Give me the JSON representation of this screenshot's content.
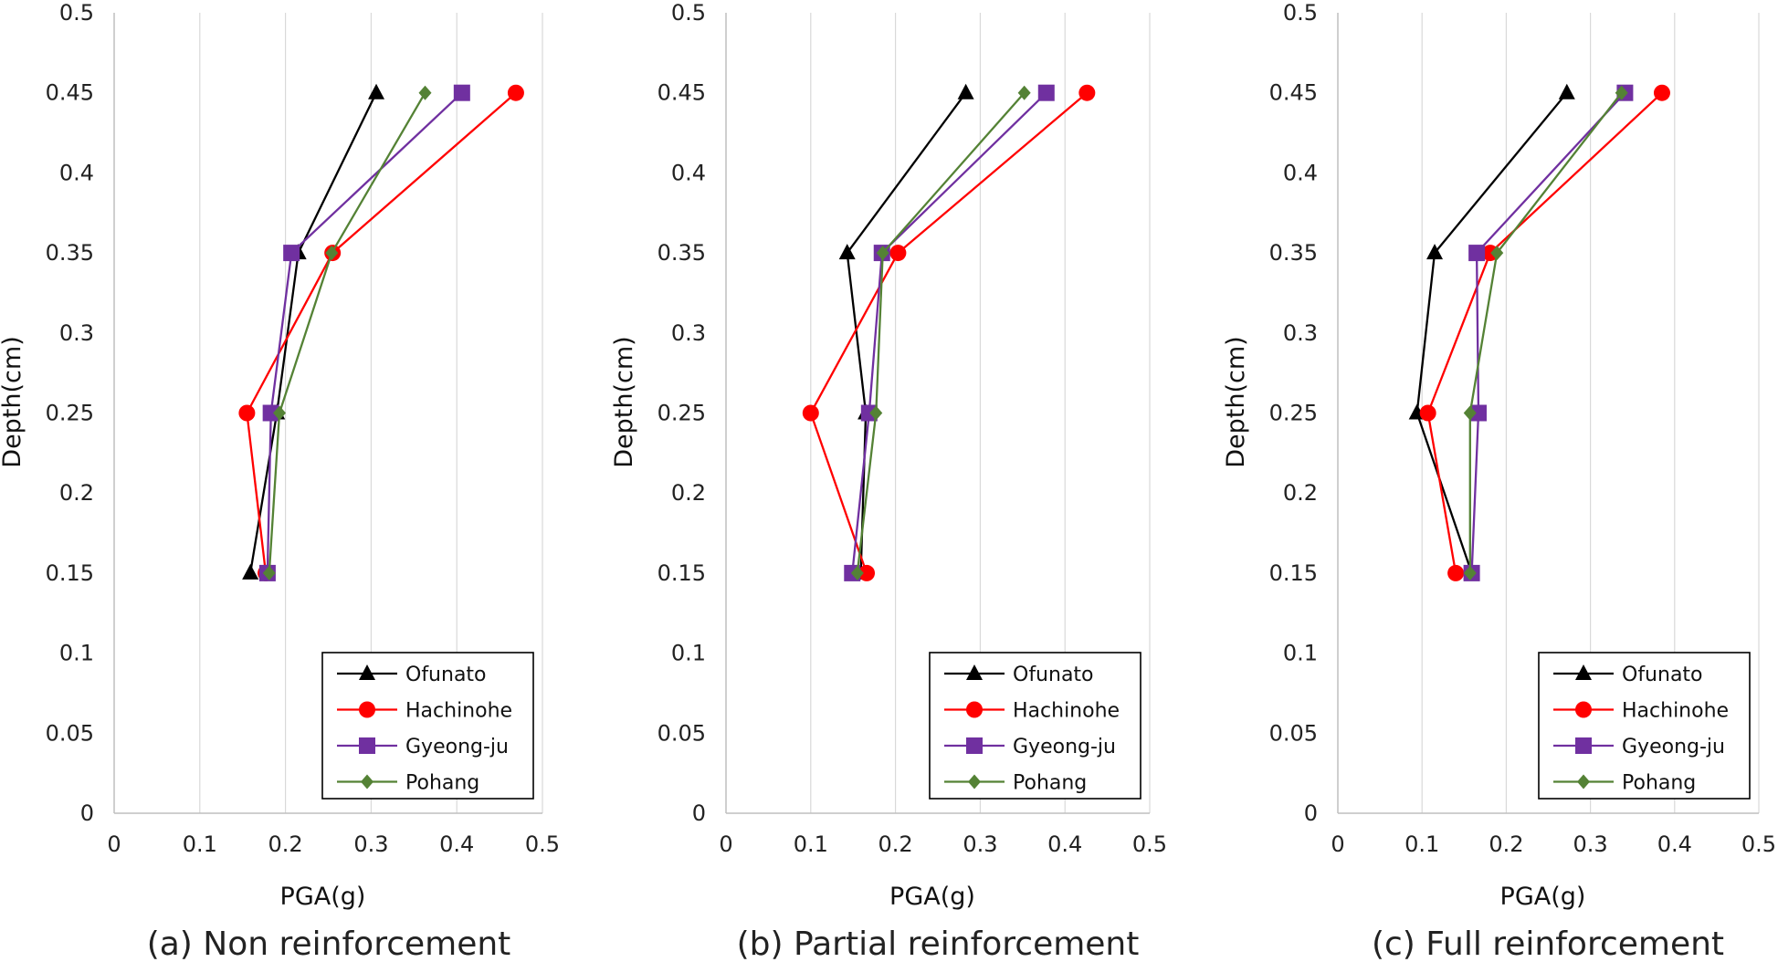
{
  "chart_data": [
    {
      "type": "line",
      "caption": "(a) Non reinforcement",
      "xlabel": "PGA(g)",
      "ylabel": "Depth(cm)",
      "xlim": [
        0,
        0.5
      ],
      "ylim": [
        0,
        0.5
      ],
      "xticks": [
        "0",
        "0.1",
        "0.2",
        "0.3",
        "0.4",
        "0.5"
      ],
      "yticks": [
        "0",
        "0.05",
        "0.1",
        "0.15",
        "0.2",
        "0.25",
        "0.3",
        "0.35",
        "0.4",
        "0.45",
        "0.5"
      ],
      "grid": "vertical",
      "legend": "bottom-right",
      "series": [
        {
          "name": "Ofunato",
          "color": "#000000",
          "marker": "triangle",
          "x": [
            0.159,
            0.19,
            0.215,
            0.306
          ],
          "y": [
            0.15,
            0.25,
            0.35,
            0.45
          ]
        },
        {
          "name": "Hachinohe",
          "color": "#ff0000",
          "marker": "circle",
          "x": [
            0.177,
            0.155,
            0.255,
            0.469
          ],
          "y": [
            0.15,
            0.25,
            0.35,
            0.45
          ]
        },
        {
          "name": "Gyeong-ju",
          "color": "#7030a0",
          "marker": "square",
          "x": [
            0.179,
            0.183,
            0.207,
            0.406
          ],
          "y": [
            0.15,
            0.25,
            0.35,
            0.45
          ]
        },
        {
          "name": "Pohang",
          "color": "#548235",
          "marker": "diamond",
          "x": [
            0.181,
            0.193,
            0.254,
            0.363
          ],
          "y": [
            0.15,
            0.25,
            0.35,
            0.45
          ]
        }
      ]
    },
    {
      "type": "line",
      "caption": "(b) Partial reinforcement",
      "xlabel": "PGA(g)",
      "ylabel": "Depth(cm)",
      "xlim": [
        0,
        0.5
      ],
      "ylim": [
        0,
        0.5
      ],
      "xticks": [
        "0",
        "0.1",
        "0.2",
        "0.3",
        "0.4",
        "0.5"
      ],
      "yticks": [
        "0",
        "0.05",
        "0.1",
        "0.15",
        "0.2",
        "0.25",
        "0.3",
        "0.35",
        "0.4",
        "0.45",
        "0.5"
      ],
      "grid": "vertical",
      "legend": "bottom-right",
      "series": [
        {
          "name": "Ofunato",
          "color": "#000000",
          "marker": "triangle",
          "x": [
            0.159,
            0.165,
            0.143,
            0.283
          ],
          "y": [
            0.15,
            0.25,
            0.35,
            0.45
          ]
        },
        {
          "name": "Hachinohe",
          "color": "#ff0000",
          "marker": "circle",
          "x": [
            0.166,
            0.1,
            0.203,
            0.426
          ],
          "y": [
            0.15,
            0.25,
            0.35,
            0.45
          ]
        },
        {
          "name": "Gyeong-ju",
          "color": "#7030a0",
          "marker": "square",
          "x": [
            0.149,
            0.169,
            0.184,
            0.378
          ],
          "y": [
            0.15,
            0.25,
            0.35,
            0.45
          ]
        },
        {
          "name": "Pohang",
          "color": "#548235",
          "marker": "diamond",
          "x": [
            0.155,
            0.177,
            0.185,
            0.352
          ],
          "y": [
            0.15,
            0.25,
            0.35,
            0.45
          ]
        }
      ]
    },
    {
      "type": "line",
      "caption": "(c) Full reinforcement",
      "xlabel": "PGA(g)",
      "ylabel": "Depth(cm)",
      "xlim": [
        0,
        0.5
      ],
      "ylim": [
        0,
        0.5
      ],
      "xticks": [
        "0",
        "0.1",
        "0.2",
        "0.3",
        "0.4",
        "0.5"
      ],
      "yticks": [
        "0",
        "0.05",
        "0.1",
        "0.15",
        "0.2",
        "0.25",
        "0.3",
        "0.35",
        "0.4",
        "0.45",
        "0.5"
      ],
      "grid": "vertical",
      "legend": "bottom-right",
      "series": [
        {
          "name": "Ofunato",
          "color": "#000000",
          "marker": "triangle",
          "x": [
            0.159,
            0.094,
            0.115,
            0.272
          ],
          "y": [
            0.15,
            0.25,
            0.35,
            0.45
          ]
        },
        {
          "name": "Hachinohe",
          "color": "#ff0000",
          "marker": "circle",
          "x": [
            0.14,
            0.107,
            0.181,
            0.385
          ],
          "y": [
            0.15,
            0.25,
            0.35,
            0.45
          ]
        },
        {
          "name": "Gyeong-ju",
          "color": "#7030a0",
          "marker": "square",
          "x": [
            0.159,
            0.167,
            0.165,
            0.341
          ],
          "y": [
            0.15,
            0.25,
            0.35,
            0.45
          ]
        },
        {
          "name": "Pohang",
          "color": "#548235",
          "marker": "diamond",
          "x": [
            0.157,
            0.157,
            0.189,
            0.337
          ],
          "y": [
            0.15,
            0.25,
            0.35,
            0.45
          ]
        }
      ]
    }
  ]
}
